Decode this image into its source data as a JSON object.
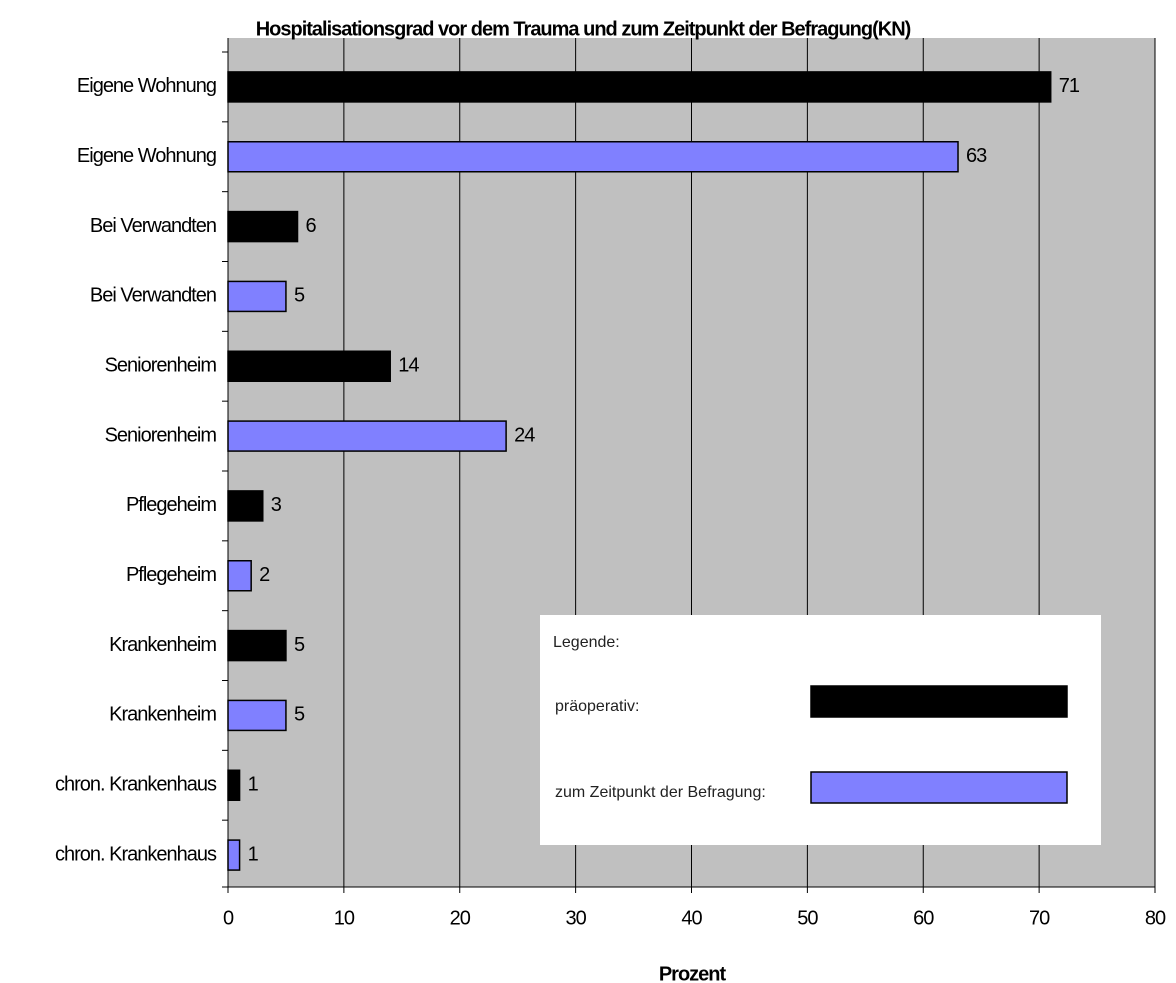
{
  "chart_data": {
    "type": "bar",
    "orientation": "horizontal",
    "title": "Hospitalisationsgrad vor dem Trauma und zum Zeitpunkt der Befragung(KN)",
    "x_label": "Prozent",
    "categories": [
      "Eigene Wohnung",
      "Eigene Wohnung",
      "Bei Verwandten",
      "Bei Verwandten",
      "Seniorenheim",
      "Seniorenheim",
      "Pflegeheim",
      "Pflegeheim",
      "Krankenheim",
      "Krankenheim",
      "chron. Krankenhaus",
      "chron. Krankenhaus"
    ],
    "series": [
      {
        "name": "präoperativ:",
        "color": "#000000",
        "values": [
          71,
          null,
          6,
          null,
          14,
          null,
          3,
          null,
          5,
          null,
          1,
          null
        ]
      },
      {
        "name": "zum Zeitpunkt der Befragung:",
        "color": "#8080ff",
        "values": [
          null,
          63,
          null,
          5,
          null,
          24,
          null,
          2,
          null,
          5,
          null,
          1
        ]
      }
    ],
    "legend_title": "Legende:",
    "xlim": [
      0,
      80
    ],
    "xticks": [
      0,
      10,
      20,
      30,
      40,
      50,
      60,
      70,
      80
    ],
    "grid": true
  }
}
